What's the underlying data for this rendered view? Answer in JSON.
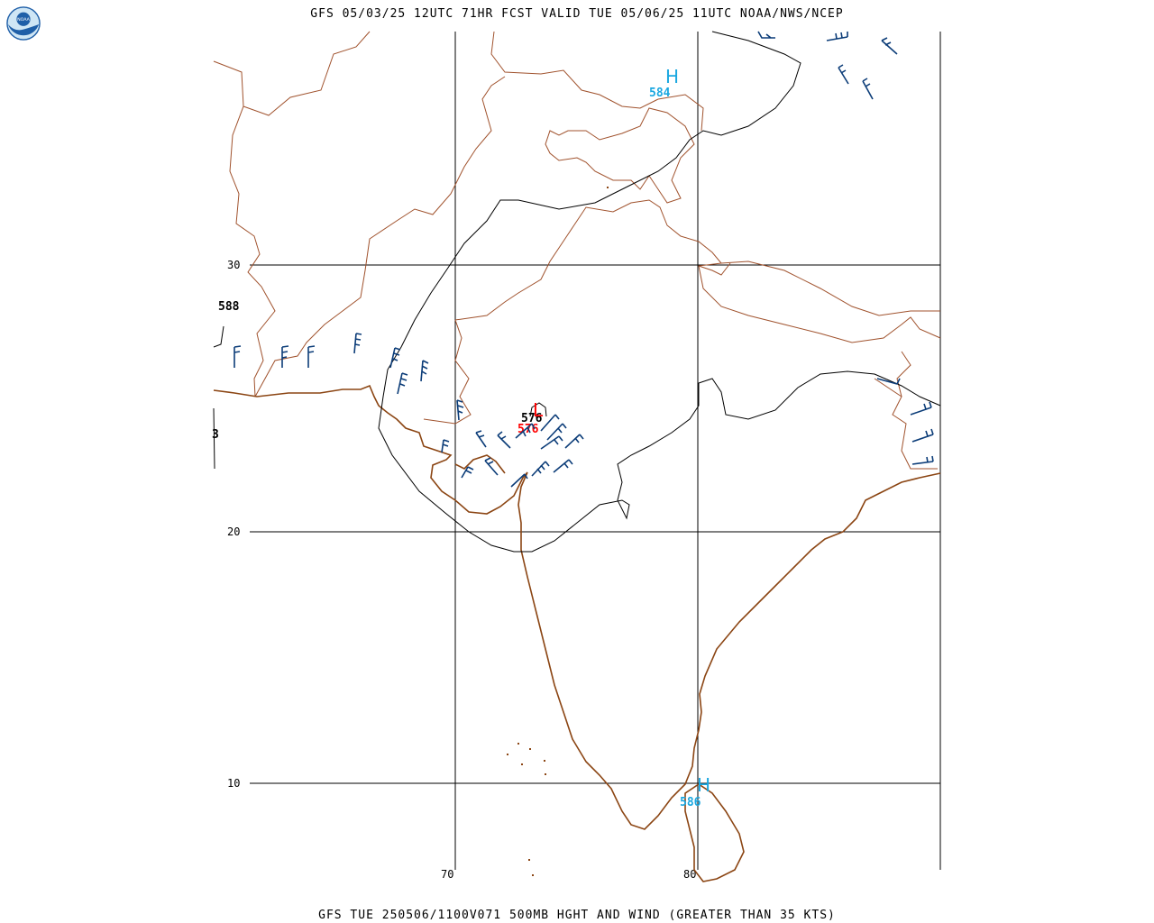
{
  "header": {
    "title": "GFS 05/03/25 12UTC 71HR FCST VALID TUE 05/06/25 11UTC NOAA/NWS/NCEP",
    "footer": "GFS TUE 250506/1100V071 500MB HGHT AND WIND (GREATER THAN 35 KTS)"
  },
  "logo": {
    "text": "NOAA",
    "icon": "noaa-logo-icon"
  },
  "axes": {
    "lat_labels": [
      "30",
      "20",
      "10"
    ],
    "lon_labels": [
      "70",
      "80"
    ]
  },
  "contours": {
    "left_588": "588",
    "left_partial": "3",
    "low_contour": "576"
  },
  "centers": [
    {
      "type": "H",
      "value": "584",
      "color": "#1aa7e0"
    },
    {
      "type": "L",
      "value": "576",
      "color": "#ff0000"
    },
    {
      "type": "H",
      "value": "586",
      "color": "#1aa7e0"
    }
  ],
  "colors": {
    "coastline": "#8b4513",
    "border": "#a0522d",
    "wind_barbs": "#0b3c78",
    "contour": "#000000",
    "high": "#1aa7e0",
    "low": "#ff0000"
  }
}
